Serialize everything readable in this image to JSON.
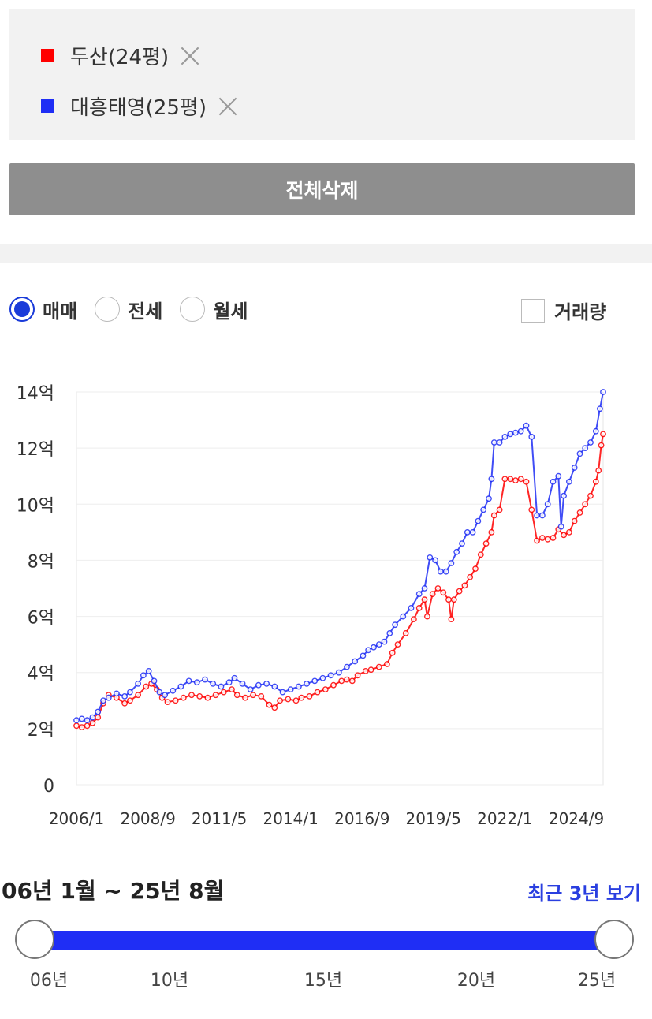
{
  "tags": [
    {
      "label": "두산(24평)",
      "color": "#ff0000"
    },
    {
      "label": "대흥태영(25평)",
      "color": "#1f2ef5"
    }
  ],
  "delete_all_label": "전체삭제",
  "radios": [
    {
      "label": "매매",
      "selected": true
    },
    {
      "label": "전세",
      "selected": false
    },
    {
      "label": "월세",
      "selected": false
    }
  ],
  "volume_label": "거래량",
  "range": {
    "text": "06년 1월 ~ 25년 8월",
    "recent_label": "최근 3년 보기",
    "ticks": [
      "06년",
      "10년",
      "15년",
      "20년",
      "25년"
    ],
    "start_fraction": 0.0,
    "end_fraction": 1.0
  },
  "chart_data": {
    "type": "line",
    "y_unit": "억",
    "ylim": [
      0,
      14
    ],
    "y_ticks": [
      0,
      2,
      4,
      6,
      8,
      10,
      12,
      14
    ],
    "y_tick_labels": [
      "0",
      "2억",
      "4억",
      "6억",
      "8억",
      "10억",
      "12억",
      "14억"
    ],
    "x_range": [
      2006.0,
      2025.67
    ],
    "x_ticks": [
      2006.0,
      2008.67,
      2011.33,
      2014.0,
      2016.67,
      2019.33,
      2022.0,
      2024.67
    ],
    "x_tick_labels": [
      "2006/1",
      "2008/9",
      "2011/5",
      "2014/1",
      "2016/9",
      "2019/5",
      "2022/1",
      "2024/9"
    ],
    "grid": true,
    "series": [
      {
        "name": "두산(24평)",
        "color": "#ff0000",
        "points": [
          [
            2006.0,
            2.1
          ],
          [
            2006.2,
            2.05
          ],
          [
            2006.4,
            2.1
          ],
          [
            2006.6,
            2.2
          ],
          [
            2006.8,
            2.4
          ],
          [
            2007.0,
            2.9
          ],
          [
            2007.2,
            3.2
          ],
          [
            2007.5,
            3.1
          ],
          [
            2007.8,
            2.9
          ],
          [
            2008.0,
            3.0
          ],
          [
            2008.3,
            3.2
          ],
          [
            2008.6,
            3.5
          ],
          [
            2008.8,
            3.6
          ],
          [
            2009.0,
            3.4
          ],
          [
            2009.2,
            3.1
          ],
          [
            2009.4,
            2.95
          ],
          [
            2009.7,
            3.0
          ],
          [
            2010.0,
            3.1
          ],
          [
            2010.3,
            3.2
          ],
          [
            2010.6,
            3.15
          ],
          [
            2010.9,
            3.1
          ],
          [
            2011.2,
            3.2
          ],
          [
            2011.5,
            3.3
          ],
          [
            2011.8,
            3.4
          ],
          [
            2012.0,
            3.2
          ],
          [
            2012.3,
            3.1
          ],
          [
            2012.6,
            3.2
          ],
          [
            2012.9,
            3.15
          ],
          [
            2013.2,
            2.85
          ],
          [
            2013.4,
            2.75
          ],
          [
            2013.6,
            3.0
          ],
          [
            2013.9,
            3.05
          ],
          [
            2014.2,
            3.0
          ],
          [
            2014.4,
            3.1
          ],
          [
            2014.7,
            3.15
          ],
          [
            2015.0,
            3.3
          ],
          [
            2015.3,
            3.4
          ],
          [
            2015.6,
            3.55
          ],
          [
            2015.9,
            3.7
          ],
          [
            2016.1,
            3.75
          ],
          [
            2016.3,
            3.7
          ],
          [
            2016.5,
            3.9
          ],
          [
            2016.8,
            4.05
          ],
          [
            2017.0,
            4.1
          ],
          [
            2017.3,
            4.2
          ],
          [
            2017.6,
            4.3
          ],
          [
            2017.8,
            4.7
          ],
          [
            2018.0,
            5.0
          ],
          [
            2018.3,
            5.4
          ],
          [
            2018.6,
            5.9
          ],
          [
            2018.8,
            6.3
          ],
          [
            2019.0,
            6.6
          ],
          [
            2019.1,
            6.0
          ],
          [
            2019.3,
            6.8
          ],
          [
            2019.5,
            7.0
          ],
          [
            2019.7,
            6.85
          ],
          [
            2019.9,
            6.6
          ],
          [
            2020.0,
            5.9
          ],
          [
            2020.1,
            6.6
          ],
          [
            2020.3,
            6.9
          ],
          [
            2020.5,
            7.1
          ],
          [
            2020.7,
            7.4
          ],
          [
            2020.9,
            7.7
          ],
          [
            2021.1,
            8.2
          ],
          [
            2021.3,
            8.6
          ],
          [
            2021.5,
            9.0
          ],
          [
            2021.6,
            9.6
          ],
          [
            2021.8,
            9.8
          ],
          [
            2022.0,
            10.9
          ],
          [
            2022.2,
            10.9
          ],
          [
            2022.4,
            10.85
          ],
          [
            2022.6,
            10.9
          ],
          [
            2022.8,
            10.8
          ],
          [
            2023.0,
            9.8
          ],
          [
            2023.2,
            8.7
          ],
          [
            2023.4,
            8.8
          ],
          [
            2023.6,
            8.75
          ],
          [
            2023.8,
            8.8
          ],
          [
            2024.0,
            9.1
          ],
          [
            2024.2,
            8.9
          ],
          [
            2024.4,
            9.0
          ],
          [
            2024.6,
            9.4
          ],
          [
            2024.8,
            9.7
          ],
          [
            2025.0,
            10.0
          ],
          [
            2025.2,
            10.3
          ],
          [
            2025.4,
            10.8
          ],
          [
            2025.5,
            11.2
          ],
          [
            2025.6,
            12.1
          ],
          [
            2025.67,
            12.5
          ]
        ]
      },
      {
        "name": "대흥태영(25평)",
        "color": "#1f2ef5",
        "points": [
          [
            2006.0,
            2.3
          ],
          [
            2006.2,
            2.35
          ],
          [
            2006.4,
            2.3
          ],
          [
            2006.6,
            2.4
          ],
          [
            2006.8,
            2.6
          ],
          [
            2007.0,
            3.0
          ],
          [
            2007.2,
            3.1
          ],
          [
            2007.5,
            3.25
          ],
          [
            2007.8,
            3.15
          ],
          [
            2008.0,
            3.3
          ],
          [
            2008.3,
            3.6
          ],
          [
            2008.5,
            3.9
          ],
          [
            2008.7,
            4.05
          ],
          [
            2008.9,
            3.7
          ],
          [
            2009.1,
            3.3
          ],
          [
            2009.3,
            3.2
          ],
          [
            2009.6,
            3.35
          ],
          [
            2009.9,
            3.5
          ],
          [
            2010.2,
            3.7
          ],
          [
            2010.5,
            3.65
          ],
          [
            2010.8,
            3.75
          ],
          [
            2011.1,
            3.6
          ],
          [
            2011.4,
            3.5
          ],
          [
            2011.7,
            3.65
          ],
          [
            2011.9,
            3.8
          ],
          [
            2012.2,
            3.6
          ],
          [
            2012.5,
            3.4
          ],
          [
            2012.8,
            3.55
          ],
          [
            2013.1,
            3.6
          ],
          [
            2013.4,
            3.5
          ],
          [
            2013.7,
            3.3
          ],
          [
            2014.0,
            3.4
          ],
          [
            2014.3,
            3.5
          ],
          [
            2014.6,
            3.6
          ],
          [
            2014.9,
            3.7
          ],
          [
            2015.2,
            3.8
          ],
          [
            2015.5,
            3.9
          ],
          [
            2015.8,
            4.0
          ],
          [
            2016.1,
            4.2
          ],
          [
            2016.4,
            4.4
          ],
          [
            2016.7,
            4.6
          ],
          [
            2016.9,
            4.8
          ],
          [
            2017.1,
            4.9
          ],
          [
            2017.3,
            5.0
          ],
          [
            2017.5,
            5.1
          ],
          [
            2017.7,
            5.4
          ],
          [
            2017.9,
            5.7
          ],
          [
            2018.2,
            6.0
          ],
          [
            2018.5,
            6.3
          ],
          [
            2018.8,
            6.8
          ],
          [
            2019.0,
            7.0
          ],
          [
            2019.2,
            8.1
          ],
          [
            2019.4,
            8.0
          ],
          [
            2019.6,
            7.6
          ],
          [
            2019.8,
            7.6
          ],
          [
            2020.0,
            7.9
          ],
          [
            2020.2,
            8.3
          ],
          [
            2020.4,
            8.6
          ],
          [
            2020.6,
            9.0
          ],
          [
            2020.8,
            9.0
          ],
          [
            2021.0,
            9.4
          ],
          [
            2021.2,
            9.8
          ],
          [
            2021.4,
            10.2
          ],
          [
            2021.5,
            10.9
          ],
          [
            2021.6,
            12.2
          ],
          [
            2021.8,
            12.2
          ],
          [
            2022.0,
            12.4
          ],
          [
            2022.2,
            12.5
          ],
          [
            2022.4,
            12.55
          ],
          [
            2022.6,
            12.6
          ],
          [
            2022.8,
            12.8
          ],
          [
            2023.0,
            12.4
          ],
          [
            2023.2,
            9.6
          ],
          [
            2023.4,
            9.6
          ],
          [
            2023.6,
            10.0
          ],
          [
            2023.8,
            10.8
          ],
          [
            2024.0,
            11.0
          ],
          [
            2024.1,
            9.2
          ],
          [
            2024.2,
            10.3
          ],
          [
            2024.4,
            10.8
          ],
          [
            2024.6,
            11.3
          ],
          [
            2024.8,
            11.8
          ],
          [
            2025.0,
            12.0
          ],
          [
            2025.2,
            12.2
          ],
          [
            2025.4,
            12.6
          ],
          [
            2025.55,
            13.4
          ],
          [
            2025.67,
            14.0
          ]
        ]
      }
    ]
  }
}
